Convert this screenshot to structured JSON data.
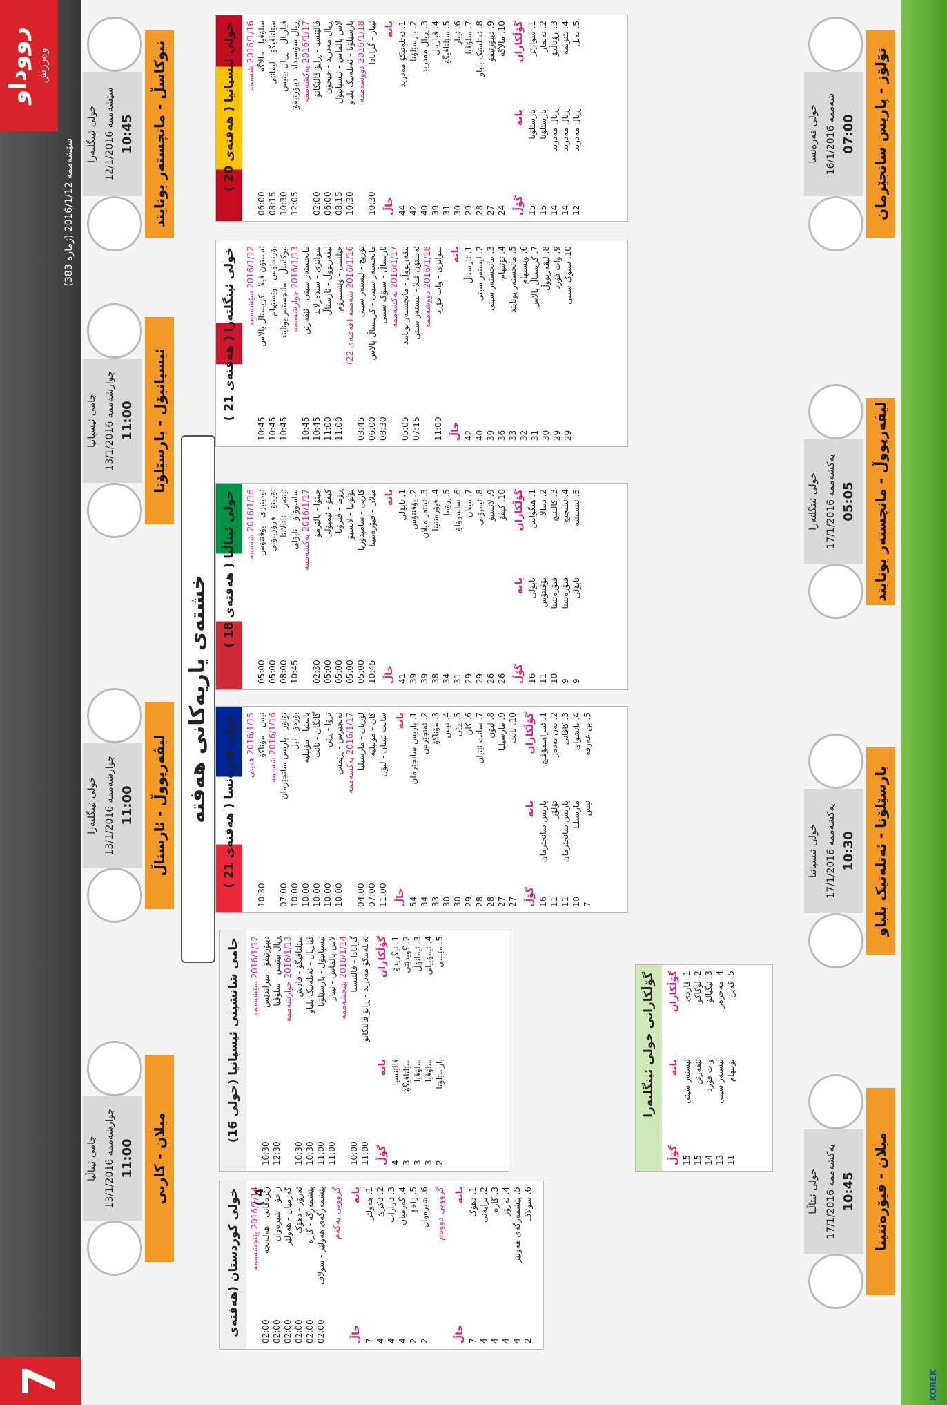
{
  "header": {
    "logo": "رووداو",
    "logo_sub": "وەرزش",
    "issue": "سێشەممە 2016/1/12 (ژمارە 383)",
    "page": "7",
    "sponsor": "KOREK"
  },
  "title": "خشتەی یاریەکانی هەفتە",
  "matches": [
    {
      "competition": "خولی ئینگلتەرا",
      "date": "سێشەممە 12/1/2016",
      "time": "10:45",
      "teams": "نیوکاسڵ - مانچستەر یونایتد"
    },
    {
      "competition": "جامی ئیسپانیا",
      "date": "چوارشەممە 13/1/2016",
      "time": "11:00",
      "teams": "ئیسپانیۆل - بارسێلۆنا"
    },
    {
      "competition": "خولی ئینگلتەرا",
      "date": "چوارشەممە 13/1/2016",
      "time": "11:00",
      "teams": "لیڤەرپووڵ - ئارسناڵ"
    },
    {
      "competition": "جامی ئیتاڵیا",
      "date": "چوارشەممە 13/1/2016",
      "time": "11:00",
      "teams": "میلان - کاربی"
    },
    {
      "competition": "خولی فەرەنسا",
      "date": "شەممە 16/1/2016",
      "time": "07:00",
      "teams": "تۆلۆز - پاریس سانجێرمان"
    },
    {
      "competition": "خولی ئینگلتەرا",
      "date": "یەکشەممە 17/1/2016",
      "time": "05:05",
      "teams": "لیڤەرپووڵ - مانچستەر یونایتد"
    },
    {
      "competition": "خولی ئیسپانیا",
      "date": "یەکشەممە 17/1/2016",
      "time": "10:30",
      "teams": "بارسێلۆنا - ئەتلەتیک بلباو"
    },
    {
      "competition": "خولی ئیتاڵیا",
      "date": "یەکشەممە 17/1/2016",
      "time": "10:45",
      "teams": "میلان - فیۆرەنتینا"
    }
  ],
  "tables": [
    {
      "title": "خولی ئیسپانیا ( هەفتەی 20 )",
      "flag": "spain",
      "fixtures": [
        {
          "date": "2016/1/16 شەممە"
        },
        {
          "time": "06:00",
          "match": "سلۆڤیا - مالاگە"
        },
        {
          "time": "08:15",
          "match": "سێلتاڤیگۆ - لیڤانتی"
        },
        {
          "time": "10:30",
          "match": "ڤیاریال - ڕیال بیتیس"
        },
        {
          "time": "12:05",
          "match": "ڕیال سۆسیداد - دیپۆرتیڤۆ"
        },
        {
          "date": "2016/1/17 یەکشەممە"
        },
        {
          "time": "02:00",
          "match": "ڤالێنسیا - ڕایۆ ڤالێکانۆ"
        },
        {
          "time": "06:00",
          "match": "ڕیال مەدرید - خیخۆن"
        },
        {
          "time": "08:15",
          "match": "لاس پالماس - ئیسپانیۆل"
        },
        {
          "time": "10:30",
          "match": "بارسێلۆنا - ئەتلەتیک بلباو"
        },
        {
          "date": "2016/1/18 دووشەممە"
        },
        {
          "time": "10:30",
          "match": "ئیبار - گرانادا"
        }
      ],
      "standings_header": {
        "team": "یانە",
        "points": "خاڵ"
      },
      "standings": [
        {
          "team": "1. ئەتلەتیکۆ مەدرید",
          "points": 44
        },
        {
          "team": "2. بارسێلۆنا",
          "points": 42
        },
        {
          "team": "3. ڕیال مەدرید",
          "points": 40
        },
        {
          "team": "4. ڤیاریال",
          "points": 39
        },
        {
          "team": "5. سێلتاڤیگۆ",
          "points": 31
        },
        {
          "team": "6. ئیبار",
          "points": 30
        },
        {
          "team": "7. سلۆڤیا",
          "points": 29
        },
        {
          "team": "8. ئەتلەتیک بلباو",
          "points": 28
        },
        {
          "team": "9. دیپۆرتیڤۆ",
          "points": 27
        },
        {
          "team": "10. مالاگە",
          "points": 24
        }
      ],
      "scorers_header": {
        "player": "گۆڵکاران",
        "team": "یانە",
        "goals": "گۆڵ"
      },
      "scorers": [
        {
          "player": "1. سوارێز",
          "team": "بارسێلۆنا",
          "goals": 15
        },
        {
          "player": "2. نەیمار",
          "team": "بارسێلۆنا",
          "goals": 15
        },
        {
          "player": "3. ڕۆناڵدۆ",
          "team": "ڕیال مەدرید",
          "goals": 14
        },
        {
          "player": "4. بێنزیمە",
          "team": "ڕیال مەدرید",
          "goals": 14
        },
        {
          "player": "5. بەیل",
          "team": "ڕیال مەدرید",
          "goals": 12
        }
      ]
    },
    {
      "title": "خولی ئینگلتەرا ( هەفتەی 21 )",
      "flag": "england",
      "fixtures": [
        {
          "date": "2016/1/12 سێشەممە"
        },
        {
          "time": "10:45",
          "match": "ئەستۆن ڤیلا - کریستاڵ پالاس"
        },
        {
          "time": "10:45",
          "match": "بۆرنماوس - وێستهام"
        },
        {
          "time": "10:45",
          "match": "نیوکاسڵ - مانچستەر یونایتد"
        },
        {
          "date": "2016/1/13 چوارشەممە"
        },
        {
          "time": "10:45",
          "match": "مانچستەر سیتی - ئێڤەرتن"
        },
        {
          "time": "10:45",
          "match": "سوانزی - سندەرلاند"
        },
        {
          "time": "11:00",
          "match": "لیڤەرپووڵ - ئارسناڵ"
        },
        {
          "time": "11:00",
          "match": "چێلسی - وێستبرۆم"
        },
        {
          "date": "2016/1/16 شەممە (هەفتەی 22)"
        },
        {
          "time": "03:45",
          "match": "نۆریچ - لیستەر سیتی"
        },
        {
          "time": "06:00",
          "match": "مانچستەر سیتی - کریستاڵ پالاس"
        },
        {
          "time": "08:30",
          "match": "ئارسناڵ - ستۆک سیتی"
        },
        {
          "date": "2016/1/17 یەکشەممە"
        },
        {
          "time": "05:05",
          "match": "لیڤەرپووڵ - مانچستەر یونایتد"
        },
        {
          "time": "07:15",
          "match": "ئەستۆن ڤیلا - لیستەر سیتی"
        },
        {
          "date": "2016/1/18 دووشەممە"
        },
        {
          "time": "11:00",
          "match": "سوانزی - وات فۆرد"
        }
      ],
      "standings_header": {
        "team": "یانە",
        "points": "خاڵ"
      },
      "standings": [
        {
          "team": "1. ئارسناڵ",
          "points": 42
        },
        {
          "team": "2. لیستەر سیتی",
          "points": 40
        },
        {
          "team": "3. مانچستەر سیتی",
          "points": 39
        },
        {
          "team": "4. تۆتنهام",
          "points": 36
        },
        {
          "team": "5. مانچستەر یونایتد",
          "points": 33
        },
        {
          "team": "6. وێستهام",
          "points": 32
        },
        {
          "team": "7. کریستاڵ پالاس",
          "points": 31
        },
        {
          "team": "8. لیڤەرپووڵ",
          "points": 30
        },
        {
          "team": "9. وات فۆرد",
          "points": 29
        },
        {
          "team": "10. ستۆک سیتی",
          "points": 29
        }
      ]
    },
    {
      "title": "خولی ئیتاڵیا ( هەفتەی 18 )",
      "flag": "italy",
      "fixtures": [
        {
          "date": "2016/1/16 شەممە"
        },
        {
          "time": "05:00",
          "match": "ئودینیزی - یۆڤنتۆس"
        },
        {
          "time": "05:00",
          "match": "تۆرینۆ - فرۆزینۆنی"
        },
        {
          "time": "08:00",
          "match": "ئینتەر - ئاتالانتا"
        },
        {
          "time": "10:45",
          "match": "ساسوۆلۆ - ناپۆلی"
        },
        {
          "date": "2016/1/17 یەکشەممە"
        },
        {
          "time": "02:30",
          "match": "جینۆا - پالێرمۆ"
        },
        {
          "time": "05:00",
          "match": "کیڤۆ - ئیمپۆلی"
        },
        {
          "time": "05:00",
          "match": "ڕۆما - ڤێرۆنا"
        },
        {
          "time": "05:00",
          "match": "بۆلۆنیا - لاتسیۆ"
        },
        {
          "time": "05:00",
          "match": "کاربی - سامپدۆریا"
        },
        {
          "time": "10:45",
          "match": "میلان - فیۆرەنتینا"
        }
      ],
      "standings_header": {
        "team": "یانە",
        "points": "خاڵ"
      },
      "standings": [
        {
          "team": "1. ناپۆلی",
          "points": 41
        },
        {
          "team": "2. یۆڤنتۆس",
          "points": 39
        },
        {
          "team": "3. ئینتەر میلان",
          "points": 39
        },
        {
          "team": "4. فیۆرەنتینا",
          "points": 38
        },
        {
          "team": "5. ڕۆما",
          "points": 34
        },
        {
          "team": "6. ساسوۆلۆ",
          "points": 31
        },
        {
          "team": "7. میلان",
          "points": 29
        },
        {
          "team": "8. ئیمپۆلی",
          "points": 29
        },
        {
          "team": "9. لاتسیۆ",
          "points": 26
        },
        {
          "team": "10. کیڤۆ",
          "points": 26
        }
      ],
      "scorers_header": {
        "player": "گۆڵکاران",
        "team": "یانە",
        "goals": "گۆڵ"
      },
      "scorers": [
        {
          "player": "1. هیگوایین",
          "team": "ناپۆلی",
          "goals": 16
        },
        {
          "player": "2. دیبالا",
          "team": "یۆڤنتۆس",
          "goals": 11
        },
        {
          "player": "3. کالینیچ",
          "team": "فیۆرەنتینا",
          "goals": 10
        },
        {
          "player": "4. ئیلیچیچ",
          "team": "فیۆرەنتینا",
          "goals": 9
        },
        {
          "player": "5. ئینسینیە",
          "team": "ناپۆلی",
          "goals": 9
        }
      ]
    },
    {
      "title": "خولی فەرەنسا ( هەفتەی 21 )",
      "flag": "france",
      "fixtures": [
        {
          "date": "2016/1/15 هەینی"
        },
        {
          "time": "10:30",
          "match": "نیس - مۆناکۆ"
        },
        {
          "date": "2016/1/16 شەممە"
        },
        {
          "time": "07:00",
          "match": "تۆلۆز - پاریس سانجێرمان"
        },
        {
          "time": "10:00",
          "match": "بۆردۆ - لیل"
        },
        {
          "time": "10:00",
          "match": "باستیا - مۆنپلیە"
        },
        {
          "time": "10:00",
          "match": "گانگان - نانت"
        },
        {
          "time": "10:00",
          "match": "ترۆا - ڕێن"
        },
        {
          "time": "10:00",
          "match": "ئەنجێرس - ڕێمس"
        },
        {
          "date": "2016/1/17 یەکشەممە"
        },
        {
          "time": "04:00",
          "match": "لۆریان - مارسیلیا"
        },
        {
          "time": "07:00",
          "match": "کان - مۆنپلیە"
        },
        {
          "time": "11:00",
          "match": "سانت ئێتیان - لیۆن"
        }
      ],
      "standings_header": {
        "team": "یانە",
        "points": "خاڵ"
      },
      "standings": [
        {
          "team": "1. پاریس سانجێرمان",
          "points": 54
        },
        {
          "team": "2. ئەنجێرس",
          "points": 34
        },
        {
          "team": "3. مۆناکۆ",
          "points": 33
        },
        {
          "team": "4. نیس",
          "points": 30
        },
        {
          "team": "5. ڕێن",
          "points": 30
        },
        {
          "team": "6. کان",
          "points": 29
        },
        {
          "team": "7. سانت ئێتیان",
          "points": 28
        },
        {
          "team": "8. لیۆن",
          "points": 28
        },
        {
          "team": "9. مارسیلیا",
          "points": 27
        },
        {
          "team": "10. نانت",
          "points": 27
        }
      ],
      "scorers_header": {
        "player": "گۆڵکاران",
        "team": "یانە",
        "goals": "گۆڵ"
      },
      "scorers": [
        {
          "player": "1. ئیبراهیمۆڤیچ",
          "team": "پاریس سانجێرمان",
          "goals": 16
        },
        {
          "player": "2. بەن یەدەر",
          "team": "تۆلۆز",
          "goals": 11
        },
        {
          "player": "3. کاڤانی",
          "team": "پاریس سانجێرمان",
          "goals": 11
        },
        {
          "player": "4. باتشوای",
          "team": "مارسیلیا",
          "goals": 10
        },
        {
          "player": "5. بن عەرفە",
          "team": "نیس",
          "goals": 7
        }
      ]
    },
    {
      "title": "جامی شانشینی ئیسپانیا (خولی 16)",
      "flag": "none",
      "fixtures": [
        {
          "date": "2016/1/12 سێشەممە"
        },
        {
          "time": "10:30",
          "match": "دیپۆرتیڤۆ - میراندێس"
        },
        {
          "time": "12:30",
          "match": "ڕیال بیتیس - سلۆڤیا"
        },
        {
          "date": "2016/1/13 چوارشەممە"
        },
        {
          "time": "10:30",
          "match": "سێلتاڤیگۆ - قادش"
        },
        {
          "time": "10:30",
          "match": "ڤیاریال - ئەتلەتیک بلباو"
        },
        {
          "time": "11:00",
          "match": "ئیسپانیۆل - بارسێلۆنا"
        },
        {
          "time": "11:00",
          "match": "لاس پالماس - ئیبار"
        },
        {
          "date": "2016/1/14 پێنجشەممە"
        },
        {
          "time": "10:00",
          "match": "گرانادا - ڤالێنسیا"
        },
        {
          "time": "11:00",
          "match": "ئەتلەتیکۆ مەدرید - ڕایۆ ڤالێکانۆ"
        }
      ],
      "scorers_header": {
        "player": "گۆڵکاران",
        "team": "یانە",
        "goals": "گۆڵ"
      },
      "scorers": [
        {
          "player": "1. نیگریدۆ",
          "team": "ڤالێنسیا",
          "goals": 4
        },
        {
          "player": "2. گویدێتی",
          "team": "سێلتاڤیگۆ",
          "goals": 3
        },
        {
          "player": "3. ئیمانۆڵ",
          "team": "سلۆڤیا",
          "goals": 3
        },
        {
          "player": "4. ئیمۆبیلی",
          "team": "سلۆڤیا",
          "goals": 3
        },
        {
          "player": "5. مێسی",
          "team": "بارسێلۆنا",
          "goals": 2
        }
      ]
    }
  ],
  "kurdistan": {
    "title": "خولی کوردستان (هەفتەی 4 )",
    "fixtures": [
      {
        "date": "2016/1/14 پێنجشەممە"
      },
      {
        "time": "02:00",
        "match": "زێرەڤانی - هەلەبجە"
      },
      {
        "time": "02:00",
        "match": "زاخۆ - شیرەوان"
      },
      {
        "time": "02:00",
        "match": "گەرمیان - هەولێر"
      },
      {
        "time": "02:00",
        "match": "ئەرۆز - دهۆک"
      },
      {
        "time": "02:00",
        "match": "پێشمەرگە - گارە"
      },
      {
        "time": "02:00",
        "match": "پێشمەرگەی هەولێر - سولاف"
      }
    ],
    "groups": [
      {
        "label": "گرووپی یەکەم",
        "header": {
          "team": "یانە",
          "points": "خاڵ"
        },
        "standings": [
          {
            "team": "1. هەولێر",
            "points": 7
          },
          {
            "team": "2. ئاکرێ",
            "points": 4
          },
          {
            "team": "3. ئارارات",
            "points": 4
          },
          {
            "team": "4. گەرمیان",
            "points": 4
          },
          {
            "team": "5. زاخۆ",
            "points": 2
          },
          {
            "team": "6. شیرەوان",
            "points": 2
          }
        ]
      },
      {
        "label": "گرووپی دووەم",
        "header": {
          "team": "یانە",
          "points": "خاڵ"
        },
        "standings": [
          {
            "team": "1. دهۆک",
            "points": 7
          },
          {
            "team": "2. برایەتی",
            "points": 4
          },
          {
            "team": "3. گارە",
            "points": 4
          },
          {
            "team": "4. ئەرۆز",
            "points": 4
          },
          {
            "team": "5. پێشمەرگەی هەولێر",
            "points": 4
          },
          {
            "team": "6. سولاف",
            "points": 2
          }
        ]
      }
    ]
  },
  "england_scorers": {
    "title": "گۆڵکارانی خولی ئینگلتەرا",
    "header": {
      "player": "گۆڵکاران",
      "team": "یانە",
      "goals": "گۆڵ"
    },
    "rows": [
      {
        "player": "1. ڤاردی",
        "team": "لیستەر سیتی",
        "goals": 15
      },
      {
        "player": "2. لوکاکو",
        "team": "ئێڤەرتن",
        "goals": 15
      },
      {
        "player": "3. ئیگیالۆ",
        "team": "وات فۆرد",
        "goals": 14
      },
      {
        "player": "4. مەحرەز",
        "team": "لیستەر سیتی",
        "goals": 13
      },
      {
        "player": "5. کەین",
        "team": "تۆتنهام",
        "goals": 11
      }
    ]
  }
}
